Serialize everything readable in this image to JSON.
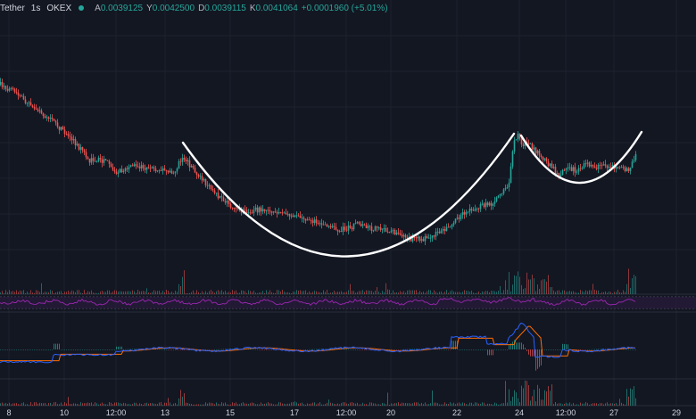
{
  "legend": {
    "symbol": "Tether",
    "timeframe": "1s",
    "exchange": "OKEX",
    "open_label": "A",
    "open": "0.0039125",
    "high_label": "Y",
    "high": "0.0042500",
    "low_label": "D",
    "low": "0.0039115",
    "close_label": "K",
    "close": "0.0041064",
    "change": "+0.0001960 (+5.01%)"
  },
  "colors": {
    "background": "#131722",
    "up": "#26a69a",
    "down": "#ef5350",
    "rsi_line": "#9c27b0",
    "macd_line": "#2962ff",
    "signal_line": "#ff6d00",
    "pattern": "#ffffff"
  },
  "chart_data": {
    "type": "line",
    "x_ticks": [
      "8",
      "10",
      "12:00",
      "13",
      "15",
      "17",
      "12:00",
      "20",
      "22",
      "24",
      "12:00",
      "27",
      "29"
    ],
    "price_path": [
      [
        0,
        95
      ],
      [
        15,
        103
      ],
      [
        30,
        115
      ],
      [
        45,
        125
      ],
      [
        60,
        138
      ],
      [
        75,
        150
      ],
      [
        90,
        168
      ],
      [
        100,
        180
      ],
      [
        110,
        178
      ],
      [
        120,
        183
      ],
      [
        130,
        192
      ],
      [
        140,
        190
      ],
      [
        150,
        186
      ],
      [
        165,
        188
      ],
      [
        180,
        190
      ],
      [
        195,
        192
      ],
      [
        205,
        175
      ],
      [
        215,
        190
      ],
      [
        230,
        205
      ],
      [
        245,
        222
      ],
      [
        260,
        232
      ],
      [
        275,
        238
      ],
      [
        290,
        235
      ],
      [
        305,
        236
      ],
      [
        320,
        240
      ],
      [
        340,
        245
      ],
      [
        360,
        250
      ],
      [
        375,
        258
      ],
      [
        390,
        256
      ],
      [
        400,
        252
      ],
      [
        415,
        256
      ],
      [
        430,
        258
      ],
      [
        445,
        262
      ],
      [
        460,
        268
      ],
      [
        475,
        268
      ],
      [
        490,
        262
      ],
      [
        505,
        252
      ],
      [
        520,
        238
      ],
      [
        535,
        232
      ],
      [
        550,
        228
      ],
      [
        560,
        220
      ],
      [
        570,
        205
      ],
      [
        575,
        162
      ],
      [
        580,
        148
      ],
      [
        585,
        162
      ],
      [
        590,
        158
      ],
      [
        600,
        170
      ],
      [
        610,
        180
      ],
      [
        620,
        190
      ],
      [
        625,
        198
      ],
      [
        635,
        186
      ],
      [
        645,
        192
      ],
      [
        655,
        183
      ],
      [
        665,
        188
      ],
      [
        675,
        186
      ],
      [
        690,
        188
      ],
      [
        705,
        192
      ],
      [
        710,
        178
      ],
      [
        713,
        168
      ]
    ]
  }
}
